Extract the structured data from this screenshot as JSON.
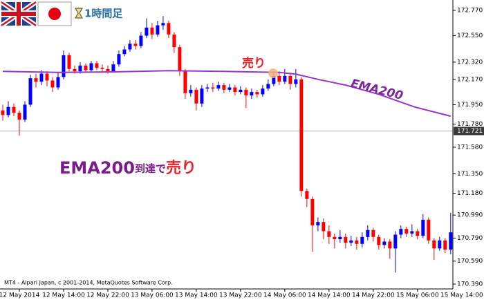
{
  "chart_data": {
    "type": "candlestick",
    "timeframe_label": "1時間足",
    "copyright": "MT4 - Alpari Japan, c 2001-2014, MetaQuotes Software Corp.",
    "sell_label": "売り",
    "headline": [
      "EMA200",
      "到達で",
      "売り"
    ],
    "up_color": "#0000ff",
    "down_color": "#ff0000",
    "open": [
      171.9,
      171.86,
      171.93,
      171.88,
      171.82,
      171.95,
      172.18,
      172.15,
      172.22,
      172.16,
      172.1,
      172.19,
      172.38,
      172.26,
      172.24,
      172.29,
      172.25,
      172.31,
      172.27,
      172.26,
      172.24,
      172.3,
      172.39,
      172.43,
      172.48,
      172.46,
      172.55,
      172.62,
      172.56,
      172.64,
      172.66,
      172.56,
      172.45,
      172.24,
      172.05,
      172.08,
      171.96,
      172.09,
      172.1,
      172.09,
      172.12,
      172.08,
      172.1,
      172.06,
      172.08,
      172.03,
      172.06,
      172.04,
      172.09,
      172.13,
      172.2,
      172.15,
      172.2,
      172.13,
      172.17,
      171.2,
      171.13,
      170.9,
      170.93,
      170.85,
      170.8,
      170.78,
      170.8,
      170.75,
      170.77,
      170.74,
      170.8,
      170.86,
      170.8,
      170.73,
      170.76,
      170.7,
      170.82,
      170.87,
      170.83,
      170.85,
      170.81,
      170.95,
      170.77,
      170.7,
      170.77,
      170.69
    ],
    "high": [
      171.95,
      171.98,
      171.96,
      171.9,
      171.98,
      172.21,
      172.22,
      172.25,
      172.24,
      172.19,
      172.23,
      172.42,
      172.4,
      172.29,
      172.32,
      172.31,
      172.33,
      172.33,
      172.3,
      172.29,
      172.33,
      172.42,
      172.46,
      172.51,
      172.51,
      172.58,
      172.7,
      172.66,
      172.68,
      172.72,
      172.68,
      172.58,
      172.47,
      172.26,
      172.12,
      172.1,
      172.12,
      172.13,
      172.14,
      172.15,
      172.14,
      172.13,
      172.12,
      172.11,
      172.1,
      172.09,
      172.08,
      172.12,
      172.17,
      172.23,
      172.24,
      172.26,
      172.22,
      172.26,
      172.19,
      171.22,
      171.15,
      170.97,
      170.96,
      170.9,
      170.83,
      170.86,
      170.83,
      170.81,
      170.8,
      170.84,
      170.9,
      170.88,
      170.82,
      170.79,
      170.78,
      170.85,
      170.9,
      170.89,
      170.91,
      170.87,
      171.0,
      170.97,
      170.79,
      170.8,
      170.79,
      171.01
    ],
    "low": [
      171.81,
      171.84,
      171.85,
      171.68,
      171.8,
      171.93,
      172.1,
      172.12,
      172.11,
      172.06,
      172.08,
      172.17,
      172.24,
      172.22,
      172.22,
      172.23,
      172.23,
      172.25,
      172.23,
      172.22,
      172.23,
      172.28,
      172.37,
      172.41,
      172.43,
      172.44,
      172.53,
      172.52,
      172.54,
      172.6,
      172.53,
      172.4,
      172.2,
      172.0,
      172.02,
      171.9,
      171.93,
      172.06,
      172.06,
      172.07,
      172.05,
      172.06,
      172.03,
      172.04,
      171.92,
      172.0,
      172.01,
      172.02,
      172.07,
      172.11,
      172.12,
      172.13,
      172.08,
      172.1,
      171.15,
      171.06,
      170.67,
      170.85,
      170.78,
      170.74,
      170.7,
      170.75,
      170.7,
      170.72,
      170.69,
      170.71,
      170.77,
      170.76,
      170.69,
      170.7,
      170.61,
      170.49,
      170.79,
      170.8,
      170.8,
      170.78,
      170.79,
      170.74,
      170.6,
      170.68,
      170.66,
      170.65
    ],
    "close": [
      171.86,
      171.93,
      171.88,
      171.82,
      171.95,
      172.18,
      172.15,
      172.22,
      172.16,
      172.1,
      172.19,
      172.38,
      172.26,
      172.24,
      172.29,
      172.25,
      172.31,
      172.27,
      172.26,
      172.24,
      172.3,
      172.39,
      172.43,
      172.48,
      172.46,
      172.55,
      172.62,
      172.56,
      172.64,
      172.66,
      172.56,
      172.45,
      172.24,
      172.05,
      172.08,
      171.96,
      172.09,
      172.1,
      172.09,
      172.12,
      172.08,
      172.1,
      172.06,
      172.08,
      172.03,
      172.06,
      172.04,
      172.09,
      172.13,
      172.2,
      172.15,
      172.2,
      172.13,
      172.17,
      171.2,
      171.13,
      170.9,
      170.93,
      170.85,
      170.8,
      170.78,
      170.8,
      170.75,
      170.77,
      170.74,
      170.8,
      170.86,
      170.8,
      170.73,
      170.76,
      170.7,
      170.82,
      170.87,
      170.83,
      170.85,
      170.81,
      170.95,
      170.77,
      170.7,
      170.77,
      170.69,
      170.84
    ],
    "ema": {
      "name": "EMA200",
      "color": "#9933cc",
      "x": [
        0,
        10,
        20,
        30,
        40,
        50,
        53,
        57,
        62,
        68,
        74.5,
        81
      ],
      "values": [
        172.24,
        172.23,
        172.235,
        172.245,
        172.24,
        172.23,
        172.215,
        172.17,
        172.12,
        172.04,
        171.93,
        171.85
      ]
    },
    "current_price": 171.721,
    "xlim": [
      -0.5,
      81.4
    ],
    "ylim": [
      170.348,
      172.86
    ],
    "xticks": [
      {
        "value": 3,
        "label": "12 May 2014"
      },
      {
        "value": 11,
        "label": "12 May 14:00"
      },
      {
        "value": 19,
        "label": "12 May 22:00"
      },
      {
        "value": 27,
        "label": "13 May 06:00"
      },
      {
        "value": 35,
        "label": "13 May 14:00"
      },
      {
        "value": 43,
        "label": "13 May 22:00"
      },
      {
        "value": 51,
        "label": "14 May 06:00"
      },
      {
        "value": 59,
        "label": "14 May 14:00"
      },
      {
        "value": 67,
        "label": "14 May 22:00"
      },
      {
        "value": 75,
        "label": "15 May 06:00"
      },
      {
        "value": 83,
        "label": "15 May 14:00"
      }
    ],
    "yticks": [
      {
        "value": 172.77,
        "label": "172.770"
      },
      {
        "value": 172.55,
        "label": "172.550"
      },
      {
        "value": 172.32,
        "label": "172.320"
      },
      {
        "value": 172.17,
        "label": "172.170"
      },
      {
        "value": 171.95,
        "label": "171.950"
      },
      {
        "value": 171.78,
        "label": "171.780"
      },
      {
        "value": 171.58,
        "label": "171.580"
      },
      {
        "value": 171.35,
        "label": "171.350"
      },
      {
        "value": 171.18,
        "label": "171.180"
      },
      {
        "value": 170.99,
        "label": "170.990"
      },
      {
        "value": 170.79,
        "label": "170.790"
      },
      {
        "value": 170.59,
        "label": "170.590"
      },
      {
        "value": 170.39,
        "label": "170.390"
      }
    ]
  }
}
